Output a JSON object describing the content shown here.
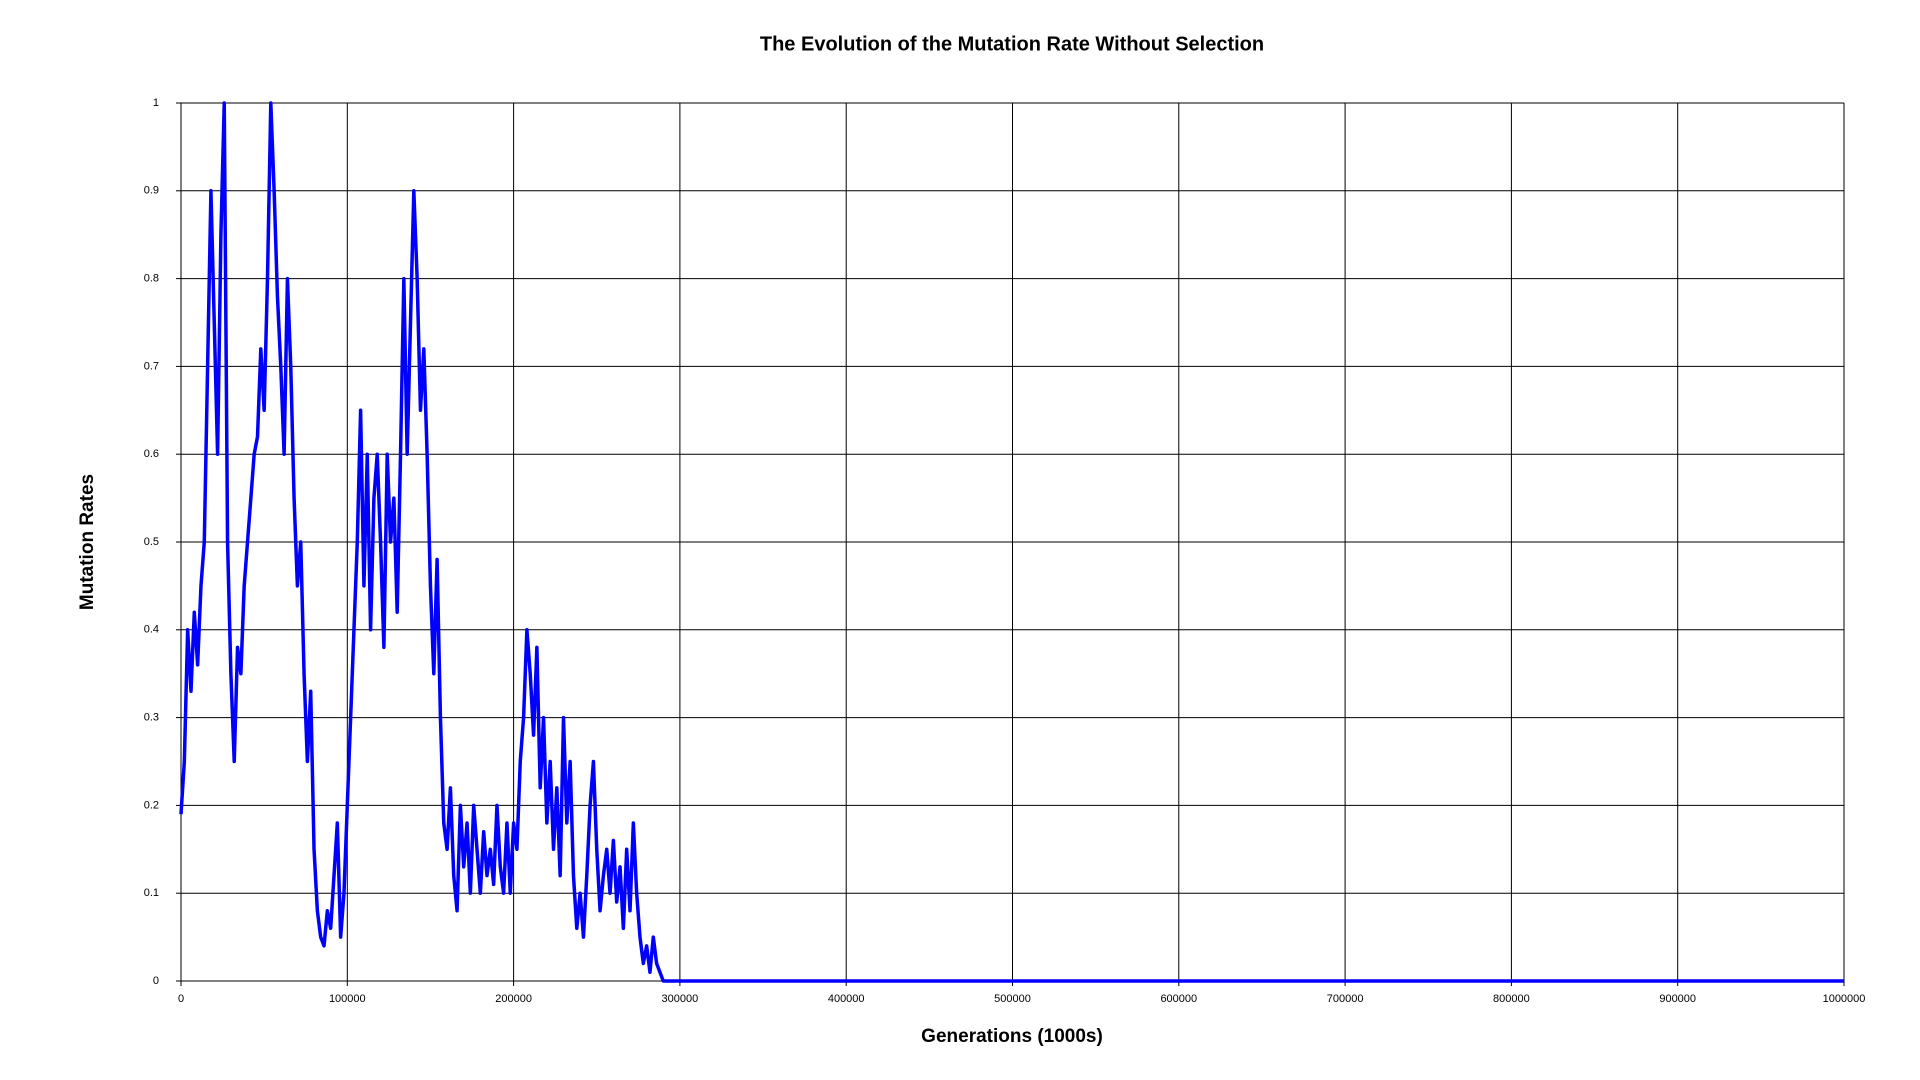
{
  "chart_data": {
    "type": "line",
    "title": "The Evolution of the Mutation Rate Without Selection",
    "x_label": "Generations (1000s)",
    "y_label": "Mutation Rates",
    "x": [
      0,
      2000,
      4000,
      6000,
      8000,
      10000,
      12000,
      14000,
      16000,
      18000,
      20000,
      22000,
      24000,
      26000,
      28000,
      30000,
      32000,
      34000,
      36000,
      38000,
      40000,
      42000,
      44000,
      46000,
      48000,
      50000,
      52000,
      54000,
      56000,
      58000,
      60000,
      62000,
      64000,
      66000,
      68000,
      70000,
      72000,
      74000,
      76000,
      78000,
      80000,
      82000,
      84000,
      86000,
      88000,
      90000,
      92000,
      94000,
      96000,
      98000,
      100000,
      102000,
      104000,
      106000,
      108000,
      110000,
      112000,
      114000,
      116000,
      118000,
      120000,
      122000,
      124000,
      126000,
      128000,
      130000,
      132000,
      134000,
      136000,
      138000,
      140000,
      142000,
      144000,
      146000,
      148000,
      150000,
      152000,
      154000,
      156000,
      158000,
      160000,
      162000,
      164000,
      166000,
      168000,
      170000,
      172000,
      174000,
      176000,
      178000,
      180000,
      182000,
      184000,
      186000,
      188000,
      190000,
      192000,
      194000,
      196000,
      198000,
      200000,
      202000,
      204000,
      206000,
      208000,
      210000,
      212000,
      214000,
      216000,
      218000,
      220000,
      222000,
      224000,
      226000,
      228000,
      230000,
      232000,
      234000,
      236000,
      238000,
      240000,
      242000,
      244000,
      246000,
      248000,
      250000,
      252000,
      254000,
      256000,
      258000,
      260000,
      262000,
      264000,
      266000,
      268000,
      270000,
      272000,
      274000,
      276000,
      278000,
      280000,
      282000,
      284000,
      286000,
      288000,
      290000,
      1000000
    ],
    "series": [
      {
        "name": "Mutation Rate",
        "color": "#0000ff",
        "values": [
          0.19,
          0.25,
          0.4,
          0.33,
          0.42,
          0.36,
          0.45,
          0.5,
          0.7,
          0.9,
          0.75,
          0.6,
          0.85,
          1.0,
          0.5,
          0.35,
          0.25,
          0.38,
          0.35,
          0.45,
          0.5,
          0.55,
          0.6,
          0.62,
          0.72,
          0.65,
          0.8,
          1.0,
          0.9,
          0.78,
          0.7,
          0.6,
          0.8,
          0.7,
          0.55,
          0.45,
          0.5,
          0.35,
          0.25,
          0.33,
          0.15,
          0.08,
          0.05,
          0.04,
          0.08,
          0.06,
          0.12,
          0.18,
          0.05,
          0.1,
          0.2,
          0.3,
          0.4,
          0.5,
          0.65,
          0.45,
          0.6,
          0.4,
          0.55,
          0.6,
          0.5,
          0.38,
          0.6,
          0.5,
          0.55,
          0.42,
          0.6,
          0.8,
          0.6,
          0.75,
          0.9,
          0.8,
          0.65,
          0.72,
          0.6,
          0.45,
          0.35,
          0.48,
          0.3,
          0.18,
          0.15,
          0.22,
          0.12,
          0.08,
          0.2,
          0.13,
          0.18,
          0.1,
          0.2,
          0.15,
          0.1,
          0.17,
          0.12,
          0.15,
          0.11,
          0.2,
          0.13,
          0.1,
          0.18,
          0.1,
          0.18,
          0.15,
          0.25,
          0.3,
          0.4,
          0.35,
          0.28,
          0.38,
          0.22,
          0.3,
          0.18,
          0.25,
          0.15,
          0.22,
          0.12,
          0.3,
          0.18,
          0.25,
          0.12,
          0.06,
          0.1,
          0.05,
          0.12,
          0.2,
          0.25,
          0.15,
          0.08,
          0.12,
          0.15,
          0.1,
          0.16,
          0.09,
          0.13,
          0.06,
          0.15,
          0.08,
          0.18,
          0.1,
          0.05,
          0.02,
          0.04,
          0.01,
          0.05,
          0.02,
          0.01,
          0,
          0
        ]
      }
    ],
    "xlim": [
      0,
      1000000
    ],
    "ylim": [
      0,
      1
    ],
    "xticks": [
      0,
      100000,
      200000,
      300000,
      400000,
      500000,
      600000,
      700000,
      800000,
      900000,
      1000000
    ],
    "yticks": [
      0,
      0.1,
      0.2,
      0.3,
      0.4,
      0.5,
      0.6,
      0.7,
      0.8,
      0.9,
      1
    ],
    "grid": true
  }
}
